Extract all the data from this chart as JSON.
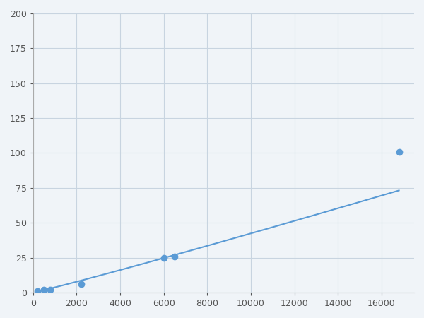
{
  "x": [
    200,
    500,
    800,
    2200,
    6000,
    6500,
    16800
  ],
  "y": [
    1,
    2,
    2,
    6,
    25,
    26,
    101
  ],
  "line_color": "#5b9bd5",
  "marker_color": "#5b9bd5",
  "marker_size": 6,
  "linewidth": 1.5,
  "xlim": [
    0,
    17500
  ],
  "ylim": [
    0,
    200
  ],
  "xticks": [
    0,
    2000,
    4000,
    6000,
    8000,
    10000,
    12000,
    14000,
    16000
  ],
  "yticks": [
    0,
    25,
    50,
    75,
    100,
    125,
    150,
    175,
    200
  ],
  "grid_color": "#c8d4e0",
  "background_color": "#f0f4f8",
  "figure_background": "#f0f4f8"
}
